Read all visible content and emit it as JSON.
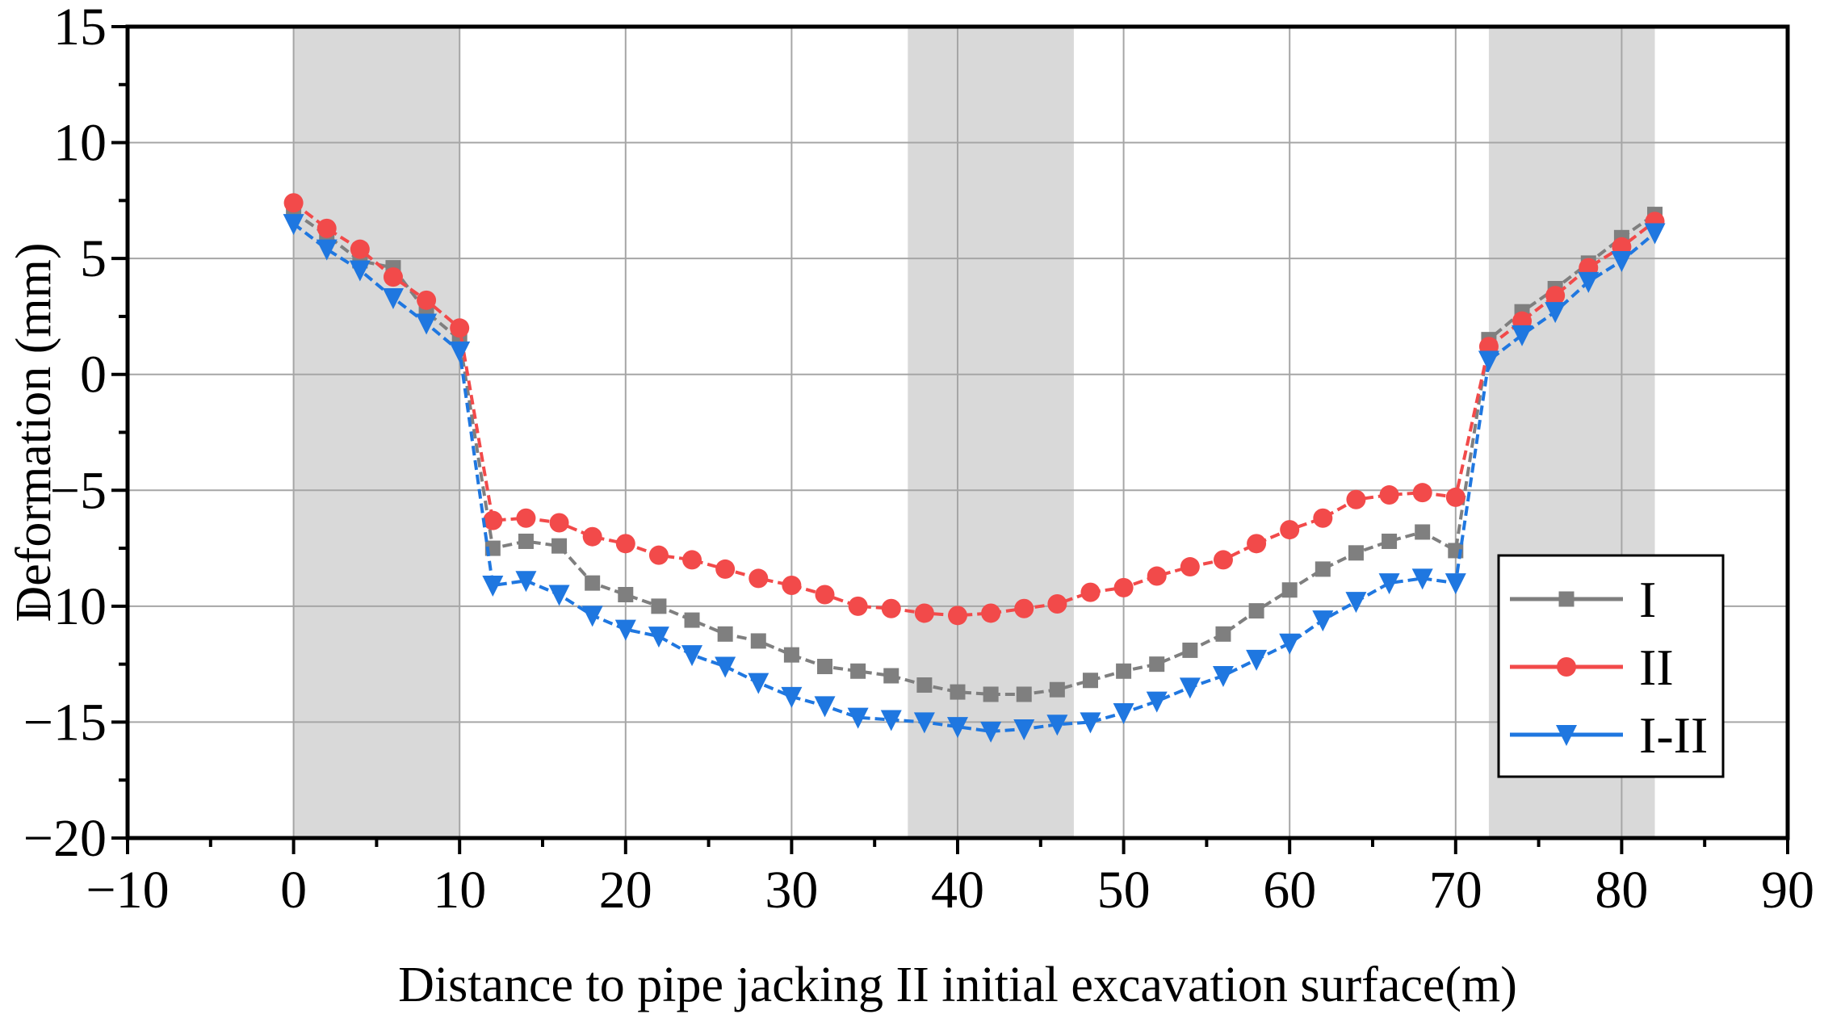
{
  "chart_data": {
    "type": "line",
    "title": "",
    "xlabel": "Distance to pipe jacking II initial excavation surface(m)",
    "ylabel": "Deformation (mm)",
    "xlim": [
      -10,
      90
    ],
    "ylim": [
      -20,
      15
    ],
    "x_ticks": [
      -10,
      0,
      10,
      20,
      30,
      40,
      50,
      60,
      70,
      80,
      90
    ],
    "y_ticks": [
      -20,
      -15,
      -10,
      -5,
      0,
      5,
      10,
      15
    ],
    "x_tick_labels": [
      "−10",
      "0",
      "10",
      "20",
      "30",
      "40",
      "50",
      "60",
      "70",
      "80",
      "90"
    ],
    "y_tick_labels": [
      "−20",
      "−15",
      "−10",
      "−5",
      "0",
      "5",
      "10",
      "15"
    ],
    "grid": true,
    "shaded_regions": [
      [
        0,
        10
      ],
      [
        37,
        47
      ],
      [
        72,
        82
      ]
    ],
    "legend_position": "bottom-right",
    "x": [
      0,
      2,
      4,
      6,
      8,
      10,
      12,
      14,
      16,
      18,
      20,
      22,
      24,
      26,
      28,
      30,
      32,
      34,
      36,
      38,
      40,
      42,
      44,
      46,
      48,
      50,
      52,
      54,
      56,
      58,
      60,
      62,
      64,
      66,
      68,
      70,
      72,
      74,
      76,
      78,
      80,
      82
    ],
    "series": [
      {
        "name": "I",
        "color": "#7f7f7f",
        "marker": "square",
        "values": [
          7.0,
          6.0,
          4.9,
          4.6,
          2.7,
          1.5,
          -7.5,
          -7.2,
          -7.4,
          -9.0,
          -9.5,
          -10.0,
          -10.6,
          -11.2,
          -11.5,
          -12.1,
          -12.6,
          -12.8,
          -13.0,
          -13.4,
          -13.7,
          -13.8,
          -13.8,
          -13.6,
          -13.2,
          -12.8,
          -12.5,
          -11.9,
          -11.2,
          -10.2,
          -9.3,
          -8.4,
          -7.7,
          -7.2,
          -6.8,
          -7.6,
          1.5,
          2.7,
          3.7,
          4.8,
          5.9,
          6.9
        ]
      },
      {
        "name": "II",
        "color": "#f24a4a",
        "marker": "circle",
        "values": [
          7.4,
          6.3,
          5.4,
          4.2,
          3.2,
          2.0,
          -6.3,
          -6.2,
          -6.4,
          -7.0,
          -7.3,
          -7.8,
          -8.0,
          -8.4,
          -8.8,
          -9.1,
          -9.5,
          -10.0,
          -10.1,
          -10.3,
          -10.4,
          -10.3,
          -10.1,
          -9.9,
          -9.4,
          -9.2,
          -8.7,
          -8.3,
          -8.0,
          -7.3,
          -6.7,
          -6.2,
          -5.4,
          -5.2,
          -5.1,
          -5.3,
          1.2,
          2.3,
          3.4,
          4.6,
          5.5,
          6.6
        ]
      },
      {
        "name": "I-II",
        "color": "#1f77e0",
        "marker": "triangle-down",
        "values": [
          6.5,
          5.4,
          4.5,
          3.3,
          2.2,
          1.0,
          -9.1,
          -8.9,
          -9.5,
          -10.4,
          -11.0,
          -11.3,
          -12.1,
          -12.6,
          -13.3,
          -13.9,
          -14.3,
          -14.8,
          -14.9,
          -15.0,
          -15.2,
          -15.4,
          -15.3,
          -15.1,
          -15.0,
          -14.6,
          -14.1,
          -13.5,
          -13.0,
          -12.3,
          -11.6,
          -10.6,
          -9.8,
          -9.0,
          -8.8,
          -9.0,
          0.6,
          1.7,
          2.7,
          4.0,
          4.9,
          6.1
        ]
      }
    ]
  }
}
